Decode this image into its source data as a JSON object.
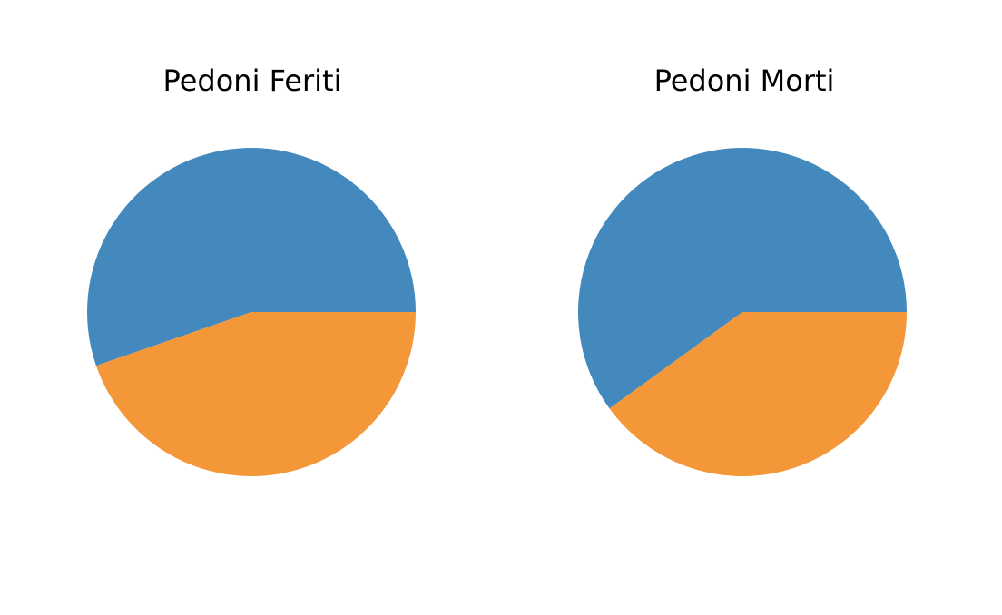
{
  "chart_data": [
    {
      "type": "pie",
      "title": "Pedoni Feriti",
      "values": [
        0.553,
        0.447
      ],
      "colors": [
        "#4389bd",
        "#f39738"
      ],
      "start_angle_deg": 0,
      "direction": "counterclockwise"
    },
    {
      "type": "pie",
      "title": "Pedoni Morti",
      "values": [
        0.6,
        0.4
      ],
      "colors": [
        "#4389bd",
        "#f39738"
      ],
      "start_angle_deg": 0,
      "direction": "counterclockwise"
    }
  ]
}
